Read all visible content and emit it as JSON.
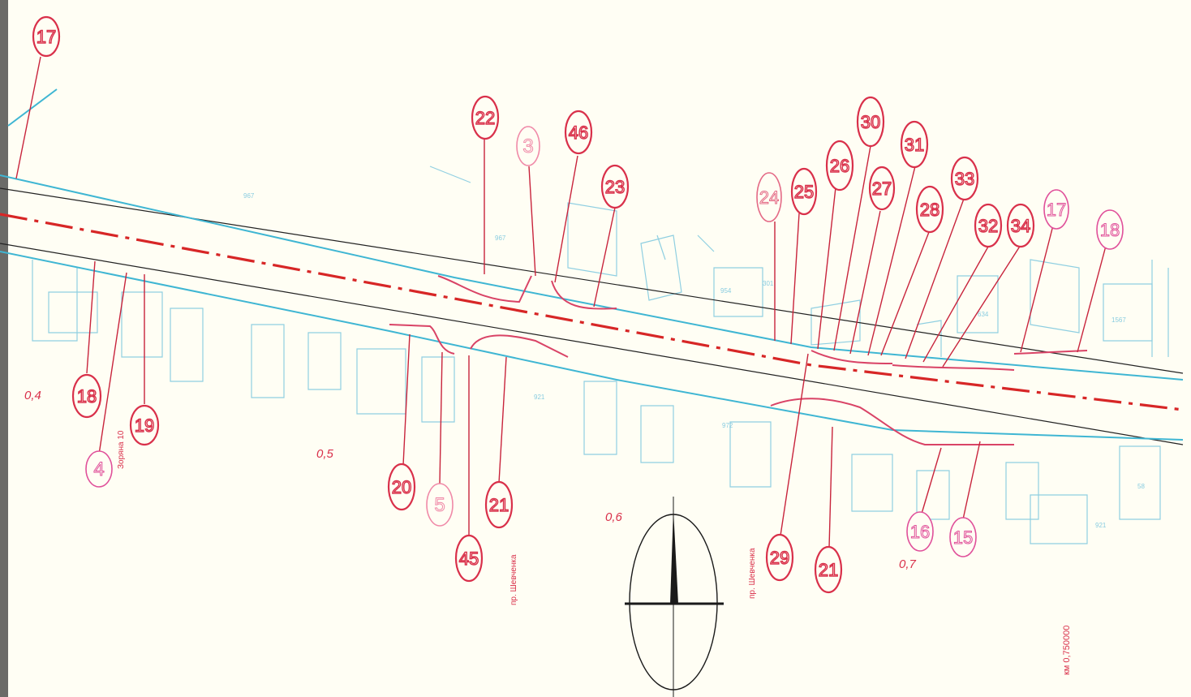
{
  "callouts": [
    {
      "label": "17",
      "color": "#d9304a",
      "style": "bold"
    },
    {
      "label": "22",
      "color": "#d9304a",
      "style": "bold"
    },
    {
      "label": "3",
      "color": "#f08aa8",
      "style": "pale"
    },
    {
      "label": "46",
      "color": "#d9304a",
      "style": "bold"
    },
    {
      "label": "23",
      "color": "#d9304a",
      "style": "bold"
    },
    {
      "label": "24",
      "color": "#e46a86",
      "style": "pale"
    },
    {
      "label": "25",
      "color": "#d9304a",
      "style": "bold"
    },
    {
      "label": "26",
      "color": "#d9304a",
      "style": "bold"
    },
    {
      "label": "30",
      "color": "#d9304a",
      "style": "bold"
    },
    {
      "label": "27",
      "color": "#d9304a",
      "style": "bold"
    },
    {
      "label": "31",
      "color": "#d9304a",
      "style": "bold"
    },
    {
      "label": "28",
      "color": "#d9304a",
      "style": "bold"
    },
    {
      "label": "33",
      "color": "#d9304a",
      "style": "bold"
    },
    {
      "label": "32",
      "color": "#d9304a",
      "style": "bold"
    },
    {
      "label": "34",
      "color": "#d9304a",
      "style": "bold"
    },
    {
      "label": "17",
      "color": "#e0509a",
      "style": "pink"
    },
    {
      "label": "18",
      "color": "#e0509a",
      "style": "pink"
    },
    {
      "label": "18",
      "color": "#d9304a",
      "style": "bold"
    },
    {
      "label": "19",
      "color": "#d9304a",
      "style": "bold"
    },
    {
      "label": "4",
      "color": "#e0509a",
      "style": "pink"
    },
    {
      "label": "20",
      "color": "#d9304a",
      "style": "bold"
    },
    {
      "label": "5",
      "color": "#f08aa8",
      "style": "pale"
    },
    {
      "label": "45",
      "color": "#d9304a",
      "style": "bold"
    },
    {
      "label": "21",
      "color": "#d9304a",
      "style": "bold"
    },
    {
      "label": "29",
      "color": "#d9304a",
      "style": "bold"
    },
    {
      "label": "21",
      "color": "#d9304a",
      "style": "bold"
    },
    {
      "label": "16",
      "color": "#e0509a",
      "style": "pink"
    },
    {
      "label": "15",
      "color": "#e0509a",
      "style": "pink"
    }
  ],
  "km_markers": [
    "0,4",
    "0,5",
    "0,6",
    "0,7"
  ],
  "street_labels": [
    "Зоряна 10",
    "пр. Шевченка",
    "пр. Шевченка"
  ],
  "scale_note": "км 0,750000",
  "colors": {
    "background": "#fffef4",
    "road_edge": "#3fb6d3",
    "centerline": "#d72626",
    "callout": "#d9304a",
    "callout_pink": "#e0509a",
    "building": "#7cc7de",
    "compass": "#1a1a1a"
  },
  "icons": {
    "compass": "north-arrow-icon"
  }
}
